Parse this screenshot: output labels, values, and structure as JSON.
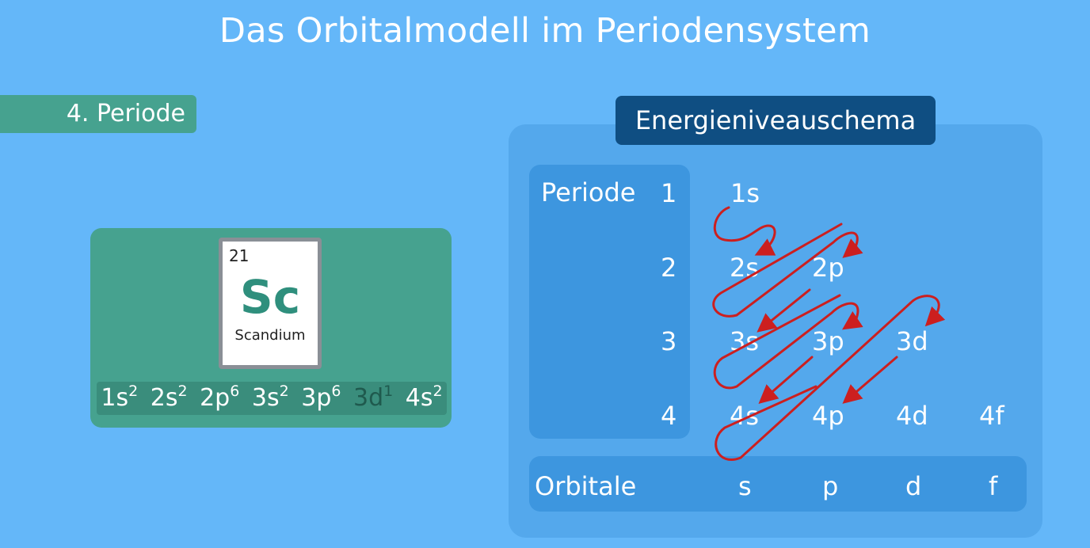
{
  "title": "Das Orbitalmodell im Periodensystem",
  "period_badge": "4. Periode",
  "element": {
    "atomic_number": "21",
    "symbol": "Sc",
    "name": "Scandium",
    "configuration": [
      {
        "orbital": "1s",
        "electrons": "2"
      },
      {
        "orbital": "2s",
        "electrons": "2"
      },
      {
        "orbital": "2p",
        "electrons": "6"
      },
      {
        "orbital": "3s",
        "electrons": "2"
      },
      {
        "orbital": "3p",
        "electrons": "6"
      },
      {
        "orbital": "3d",
        "electrons": "1"
      },
      {
        "orbital": "4s",
        "electrons": "2"
      }
    ]
  },
  "scheme": {
    "header": "Energieniveauschema",
    "period_label": "Periode",
    "orbitals_label": "Orbitale",
    "periods": [
      "1",
      "2",
      "3",
      "4"
    ],
    "orbital_types": [
      "s",
      "p",
      "d",
      "f"
    ],
    "levels": [
      [
        "1s"
      ],
      [
        "2s",
        "2p"
      ],
      [
        "3s",
        "3p",
        "3d"
      ],
      [
        "4s",
        "4p",
        "4d",
        "4f"
      ]
    ]
  },
  "colors": {
    "background": "#64b7f9",
    "green_panel": "#46a28f",
    "header": "#0f4e82",
    "arrows": "#cc1f1f"
  }
}
